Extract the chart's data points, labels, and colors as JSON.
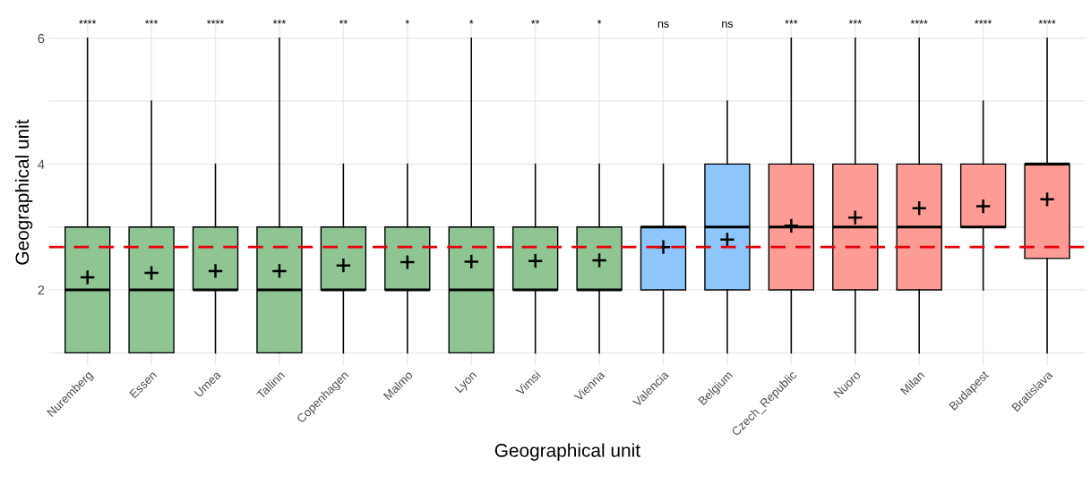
{
  "chart_data": {
    "type": "box",
    "xlabel": "Geographical unit",
    "ylabel": "Geographical unit",
    "categories": [
      "Nuremberg",
      "Essen",
      "Umea",
      "Tallinn",
      "Copenhagen",
      "Malmo",
      "Lyon",
      "Vimsi",
      "Vienna",
      "Valencia",
      "Belgium",
      "Czech_Republic",
      "Nuoro",
      "Milan",
      "Budapest",
      "Bratislava"
    ],
    "colors": [
      "#8fc493",
      "#8fc493",
      "#8fc493",
      "#8fc493",
      "#8fc493",
      "#8fc493",
      "#8fc493",
      "#8fc493",
      "#8fc493",
      "#8ec5fd",
      "#8ec5fd",
      "#fd9b95",
      "#fd9b95",
      "#fd9b95",
      "#fd9b95",
      "#fd9b95"
    ],
    "boxes": [
      {
        "low": 1,
        "q1": 1,
        "median": 2,
        "q3": 3,
        "high": 6,
        "mean": 2.2
      },
      {
        "low": 1,
        "q1": 1,
        "median": 2,
        "q3": 3,
        "high": 5,
        "mean": 2.27
      },
      {
        "low": 1,
        "q1": 2,
        "median": 2,
        "q3": 3,
        "high": 4,
        "mean": 2.3
      },
      {
        "low": 1,
        "q1": 1,
        "median": 2,
        "q3": 3,
        "high": 6,
        "mean": 2.3
      },
      {
        "low": 1,
        "q1": 2,
        "median": 2,
        "q3": 3,
        "high": 4,
        "mean": 2.39
      },
      {
        "low": 1,
        "q1": 2,
        "median": 2,
        "q3": 3,
        "high": 4,
        "mean": 2.44
      },
      {
        "low": 1,
        "q1": 1,
        "median": 2,
        "q3": 3,
        "high": 6,
        "mean": 2.45
      },
      {
        "low": 1,
        "q1": 2,
        "median": 2,
        "q3": 3,
        "high": 4,
        "mean": 2.46
      },
      {
        "low": 1,
        "q1": 2,
        "median": 2,
        "q3": 3,
        "high": 4,
        "mean": 2.47
      },
      {
        "low": 1,
        "q1": 2,
        "median": 3,
        "q3": 3,
        "high": 4,
        "mean": 2.68
      },
      {
        "low": 1,
        "q1": 2,
        "median": 3,
        "q3": 4,
        "high": 5,
        "mean": 2.8
      },
      {
        "low": 1,
        "q1": 2,
        "median": 3,
        "q3": 4,
        "high": 6,
        "mean": 3.02
      },
      {
        "low": 1,
        "q1": 2,
        "median": 3,
        "q3": 4,
        "high": 6,
        "mean": 3.15
      },
      {
        "low": 1,
        "q1": 2,
        "median": 3,
        "q3": 4,
        "high": 6,
        "mean": 3.3
      },
      {
        "low": 2,
        "q1": 3,
        "median": 3,
        "q3": 4,
        "high": 5,
        "mean": 3.33
      },
      {
        "low": 1,
        "q1": 2.5,
        "median": 4,
        "q3": 4,
        "high": 6,
        "mean": 3.44
      }
    ],
    "ylim": [
      0.8,
      6.3
    ],
    "yticks": [
      {
        "value": 1,
        "label": null
      },
      2,
      {
        "value": 3,
        "label": null
      },
      4,
      {
        "value": 5,
        "label": null
      },
      6
    ],
    "grid": true,
    "ref_lines": [
      {
        "axis": "y",
        "value": 2.68,
        "color": "#e8000b",
        "line_style": "dashed"
      }
    ],
    "annotations": [
      "****",
      "***",
      "****",
      "***",
      "**",
      "*",
      "*",
      "**",
      "*",
      "ns",
      "ns",
      "***",
      "***",
      "****",
      "****",
      "****"
    ]
  }
}
